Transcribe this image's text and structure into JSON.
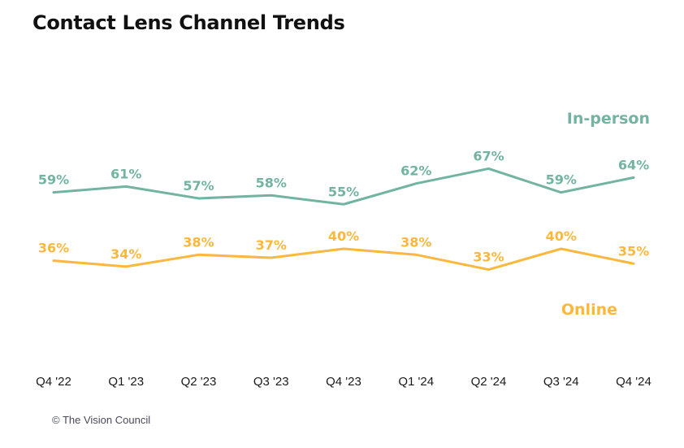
{
  "chart_data": {
    "type": "line",
    "title": "Contact Lens Channel Trends",
    "xlabel": "",
    "ylabel": "",
    "categories": [
      "Q4 '22",
      "Q1 '23",
      "Q2 '23",
      "Q3 '23",
      "Q4 '23",
      "Q1 '24",
      "Q2 '24",
      "Q3 '24",
      "Q4 '24"
    ],
    "series": [
      {
        "name": "In-person",
        "color": "#73b3a1",
        "values": [
          59,
          61,
          57,
          58,
          55,
          62,
          67,
          59,
          64
        ],
        "labels": [
          "59%",
          "61%",
          "57%",
          "58%",
          "55%",
          "62%",
          "67%",
          "59%",
          "64%"
        ]
      },
      {
        "name": "Online",
        "color": "#fbb83c",
        "values": [
          36,
          34,
          38,
          37,
          40,
          38,
          33,
          40,
          35
        ],
        "labels": [
          "36%",
          "34%",
          "38%",
          "37%",
          "40%",
          "38%",
          "33%",
          "40%",
          "35%"
        ]
      }
    ],
    "grid": false,
    "legend": "direct labels right"
  },
  "footer": {
    "credit": "© The Vision Council"
  }
}
